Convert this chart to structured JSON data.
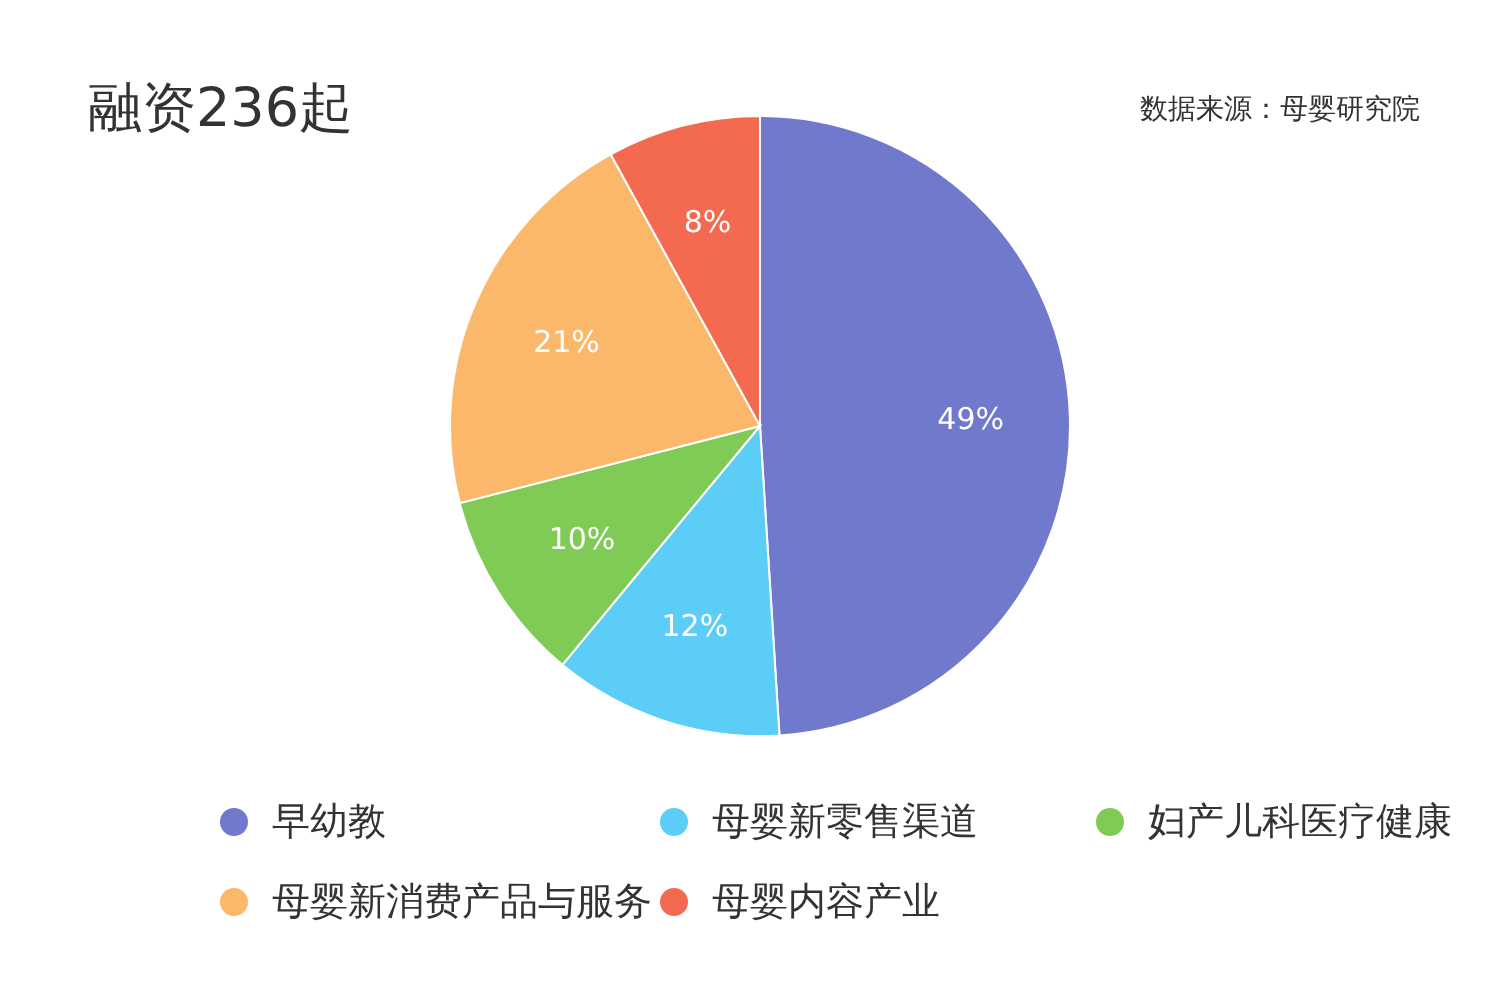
{
  "chart_data": {
    "type": "pie",
    "title": "融资236起",
    "annotations": [
      "数据来源：母婴研究院"
    ],
    "categories": [
      "早幼教",
      "母婴新零售渠道",
      "妇产儿科医疗健康",
      "母婴新消费产品与服务",
      "母婴内容产业"
    ],
    "values": [
      49,
      12,
      10,
      21,
      8
    ],
    "value_labels": [
      "49%",
      "12%",
      "10%",
      "21%",
      "8%"
    ],
    "colors": [
      "#7079cc",
      "#5bcdf7",
      "#7fcb55",
      "#fbb86a",
      "#f36a50"
    ],
    "legend": "bottom"
  }
}
